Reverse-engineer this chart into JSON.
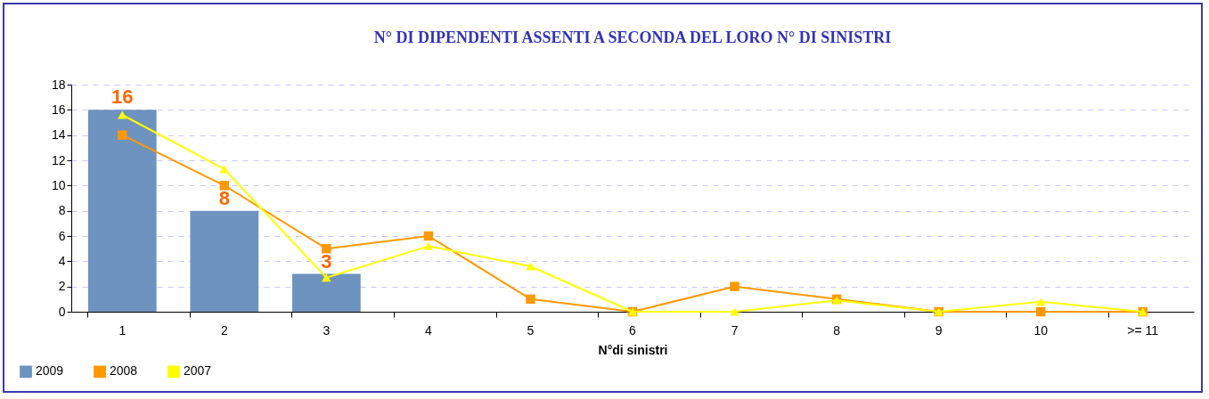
{
  "chart_data": {
    "type": "bar",
    "title": "N° DI DIPENDENTI ASSENTI A SECONDA DEL LORO N° DI SINISTRI",
    "xlabel": "N°di sinistri",
    "categories": [
      "1",
      "2",
      "3",
      "4",
      "5",
      "6",
      "7",
      "8",
      "9",
      "10",
      ">= 11"
    ],
    "series": [
      {
        "name": "2009",
        "color": "#6f93bf",
        "values": [
          16,
          8,
          3,
          0,
          0,
          0,
          0,
          0,
          0,
          0,
          0
        ],
        "value_labels": [
          "16",
          "8",
          "3",
          null,
          null,
          null,
          null,
          null,
          null,
          null,
          null
        ]
      },
      {
        "name": "2008",
        "type": "line",
        "color": "#ff9900",
        "marker": "square",
        "values": [
          14,
          10,
          5,
          6,
          1,
          0,
          2,
          1,
          0,
          0,
          0
        ]
      },
      {
        "name": "2007",
        "type": "line",
        "color": "#ffff00",
        "marker": "triangle",
        "values": [
          15.6,
          11.3,
          2.7,
          5.2,
          3.6,
          0,
          0,
          0.9,
          0,
          0.8,
          0
        ]
      }
    ],
    "ylim": [
      0,
      18
    ],
    "yticks": [
      0,
      2,
      4,
      6,
      8,
      10,
      12,
      14,
      16,
      18
    ],
    "grid": "y",
    "legend": "bottom left"
  }
}
